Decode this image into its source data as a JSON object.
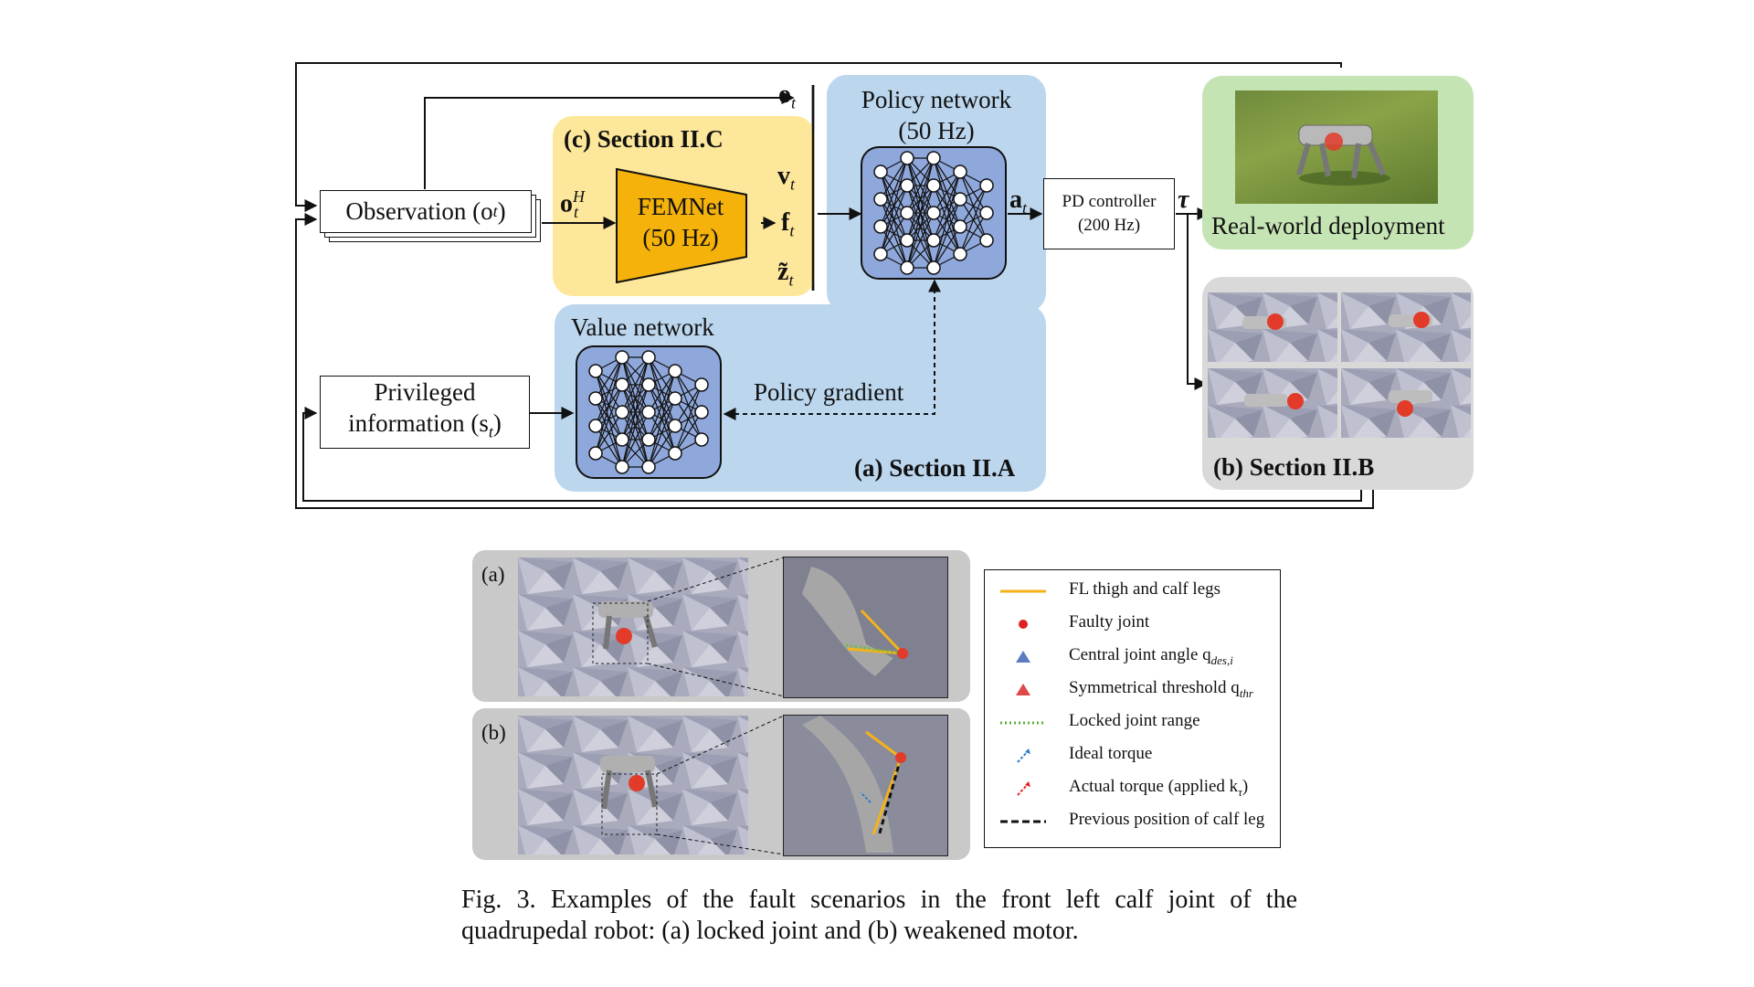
{
  "diagram": {
    "observation_label": "Observation (o",
    "observation_sub": "t",
    "observation_close": ")",
    "privileged_line1": "Privileged",
    "privileged_line2": "information (s",
    "privileged_sub": "t",
    "privileged_close": ")",
    "section_c_label": "(c) Section II.C",
    "femnet_line1": "FEMNet",
    "femnet_line2": "(50 Hz)",
    "o_t_H": "o",
    "o_t_H_sup": "H",
    "o_t_H_sub": "t",
    "o_t": "o",
    "o_t_sub": "t",
    "v_t": "v",
    "v_t_sub": "t",
    "f_t": "f",
    "f_t_sub": "t",
    "z_t": "z̃",
    "z_t_sub": "t",
    "policy_title_line1": "Policy network",
    "policy_title_line2": "(50 Hz)",
    "a_t": "a",
    "a_t_sub": "t",
    "pd_line1": "PD controller",
    "pd_line2": "(200 Hz)",
    "tau": "τ",
    "value_title": "Value network",
    "policy_gradient": "Policy gradient",
    "section_a_label": "(a) Section II.A",
    "section_b_label": "(b) Section II.B",
    "real_world_label": "Real-world deployment",
    "colors": {
      "section_c_bg": "#fde79a",
      "femnet_fill": "#f4b20b",
      "section_a_bg": "#bcd6ee",
      "network_fill": "#8fa8dc",
      "real_world_bg": "#c5e4b4",
      "section_b_bg": "#d9d9d9"
    }
  },
  "fault_figure": {
    "row_a_label": "(a)",
    "row_b_label": "(b)",
    "legend": [
      {
        "text": "FL thigh and calf legs",
        "icon": "orange-line"
      },
      {
        "text": "Faulty joint",
        "icon": "red-dot"
      },
      {
        "text": "Central joint angle q",
        "sub": "des,i",
        "icon": "blue-triangle"
      },
      {
        "text": "Symmetrical threshold q",
        "sub": "thr",
        "icon": "red-triangle"
      },
      {
        "text": "Locked joint range",
        "icon": "green-dotted-line"
      },
      {
        "text": "Ideal torque",
        "icon": "blue-dashed-arrow"
      },
      {
        "text": "Actual torque (applied k",
        "sub": "τ",
        "close": ")",
        "icon": "red-dashed-arrow"
      },
      {
        "text": "Previous position of calf leg",
        "icon": "black-dashed-line"
      }
    ]
  },
  "caption": "Fig. 3. Examples of the fault scenarios in the front left calf joint of the quadrupedal robot: (a) locked joint and (b) weakened motor."
}
